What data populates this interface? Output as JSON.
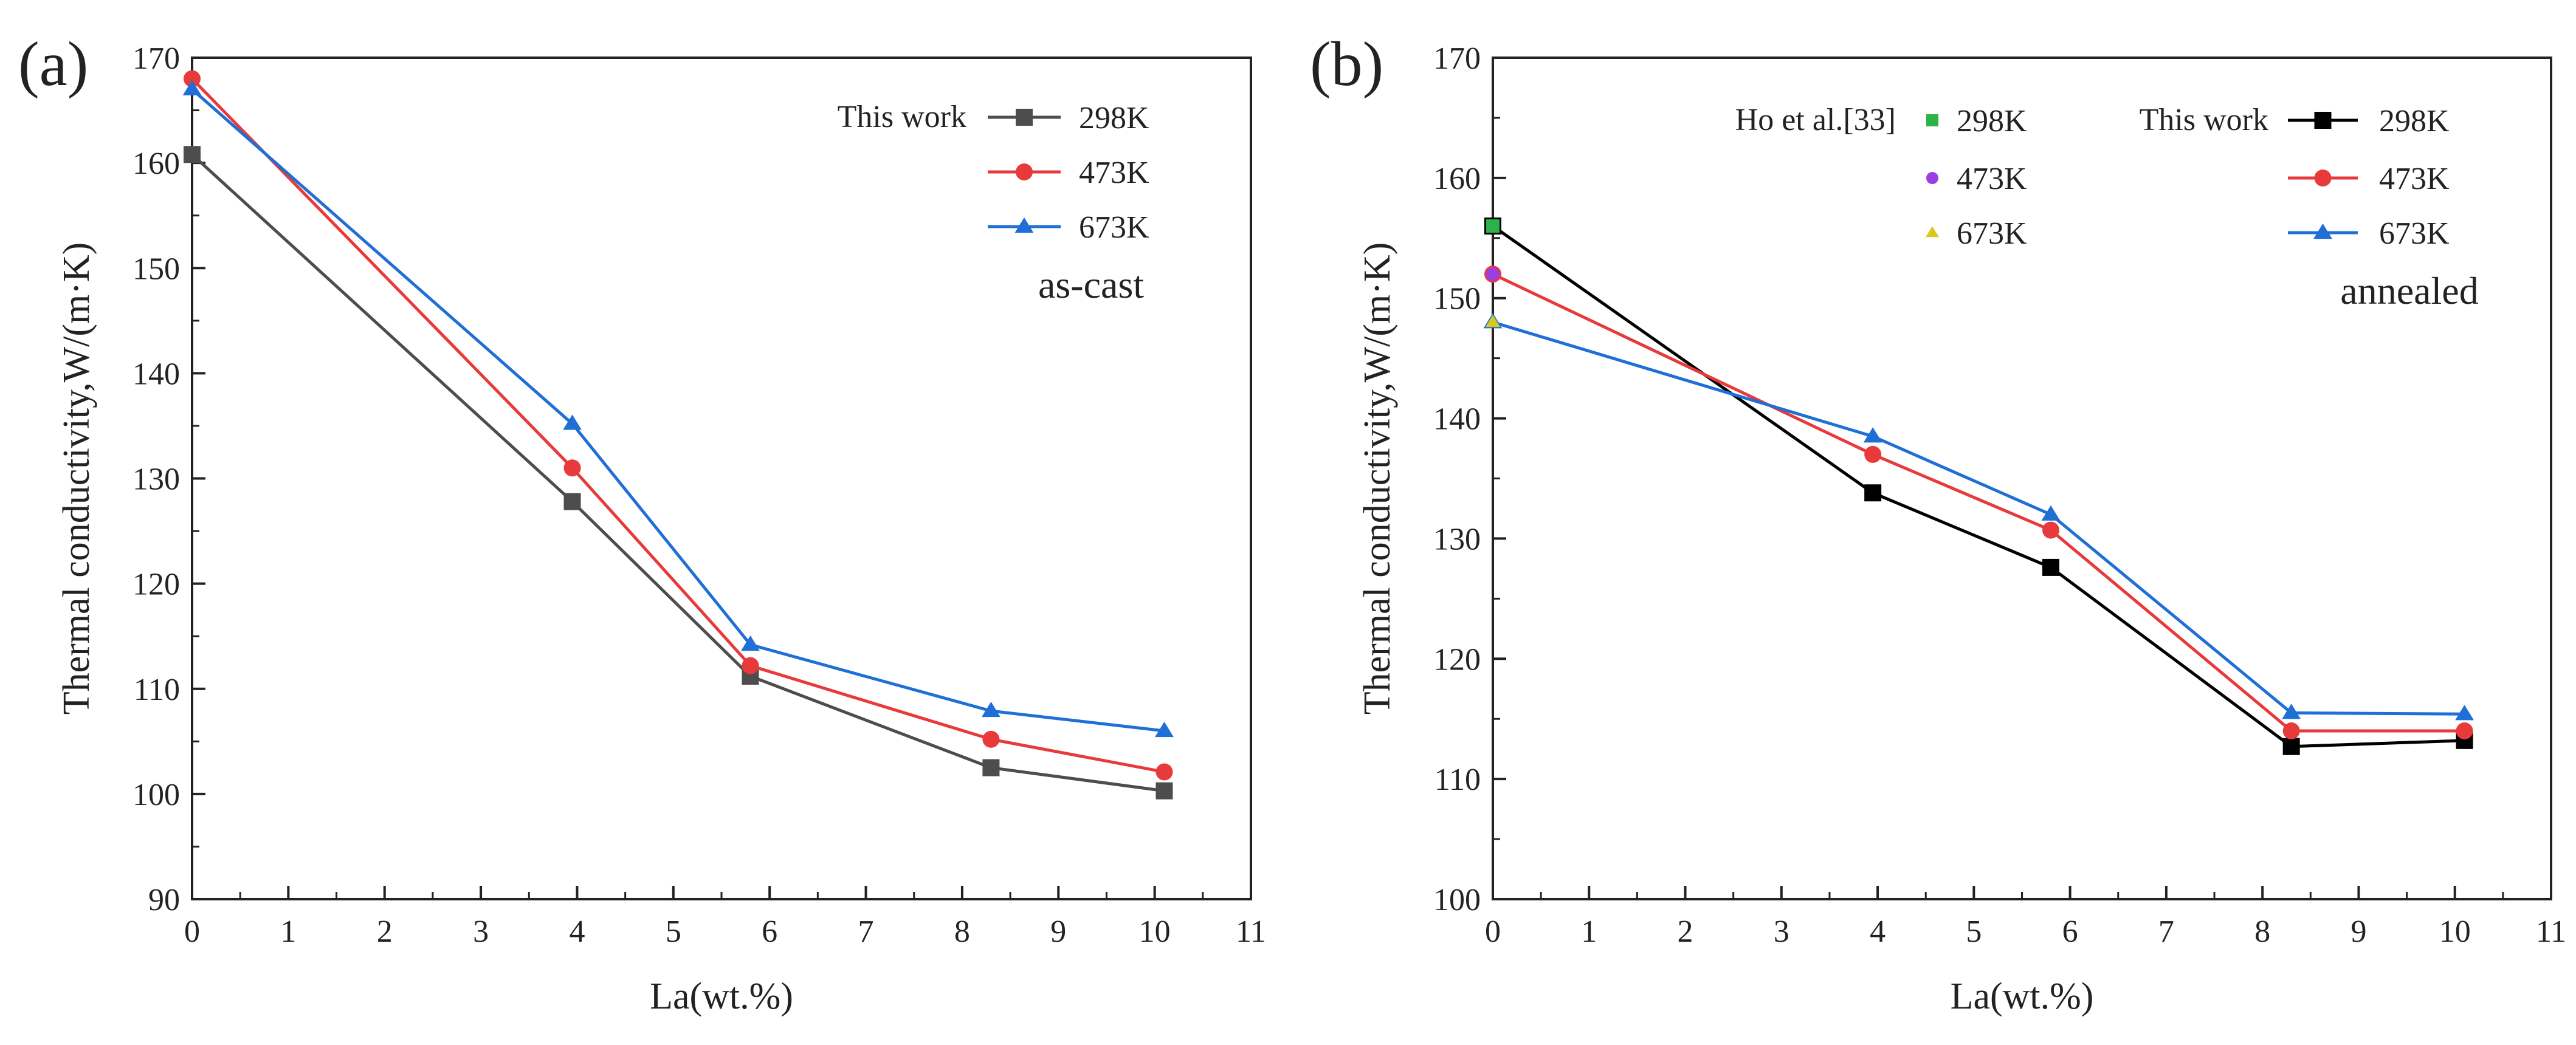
{
  "chart_data": [
    {
      "type": "line",
      "panel_label": "(a)",
      "xlabel": "La(wt.%)",
      "ylabel": "Thermal conductivity,W/(m·K)",
      "xlim": [
        0,
        11
      ],
      "ylim": [
        90,
        170
      ],
      "x_ticks": [
        0,
        1,
        2,
        3,
        4,
        5,
        6,
        7,
        8,
        9,
        10,
        11
      ],
      "y_ticks": [
        90,
        100,
        110,
        120,
        130,
        140,
        150,
        160,
        170
      ],
      "annotation": "as-cast",
      "legend_title": "This work",
      "legend_position": "top-right",
      "x": [
        0,
        3.95,
        5.8,
        8.3,
        10.1
      ],
      "series": [
        {
          "name": "298K",
          "color": "#4d4d4d",
          "marker": "square",
          "values": [
            160.8,
            127.8,
            111.2,
            102.5,
            100.3
          ]
        },
        {
          "name": "473K",
          "color": "#e8393b",
          "marker": "circle",
          "values": [
            168.0,
            131.0,
            112.2,
            105.2,
            102.1
          ]
        },
        {
          "name": "673K",
          "color": "#1f6fd6",
          "marker": "triangle",
          "values": [
            167.0,
            135.2,
            114.2,
            107.9,
            106.0
          ]
        }
      ]
    },
    {
      "type": "line",
      "panel_label": "(b)",
      "xlabel": "La(wt.%)",
      "ylabel": "Thermal conductivity,W/(m·K)",
      "xlim": [
        0,
        11
      ],
      "ylim": [
        100,
        170
      ],
      "x_ticks": [
        0,
        1,
        2,
        3,
        4,
        5,
        6,
        7,
        8,
        9,
        10,
        11
      ],
      "y_ticks": [
        100,
        110,
        120,
        130,
        140,
        150,
        160,
        170
      ],
      "annotation": "annealed",
      "legend_title": "This work",
      "legend_position": "top-right",
      "x": [
        0,
        3.95,
        5.8,
        8.3,
        10.1
      ],
      "series": [
        {
          "name": "298K",
          "color": "#000000",
          "marker": "square",
          "values": [
            156.0,
            133.8,
            127.6,
            112.7,
            113.2
          ]
        },
        {
          "name": "473K",
          "color": "#e8393b",
          "marker": "circle",
          "values": [
            152.0,
            137.0,
            130.7,
            114.0,
            114.0
          ]
        },
        {
          "name": "673K",
          "color": "#1f6fd6",
          "marker": "triangle",
          "values": [
            148.0,
            138.5,
            132.0,
            115.5,
            115.4
          ]
        }
      ],
      "reference": {
        "title": "Ho et al.[33]",
        "series": [
          {
            "name": "298K",
            "color": "#2bb34a",
            "marker": "square",
            "x": 0,
            "value": 156.0
          },
          {
            "name": "473K",
            "color": "#9b3fe0",
            "marker": "circle",
            "x": 0,
            "value": 152.0
          },
          {
            "name": "673K",
            "color": "#d9c81e",
            "marker": "triangle",
            "x": 0,
            "value": 148.0
          }
        ]
      }
    }
  ]
}
